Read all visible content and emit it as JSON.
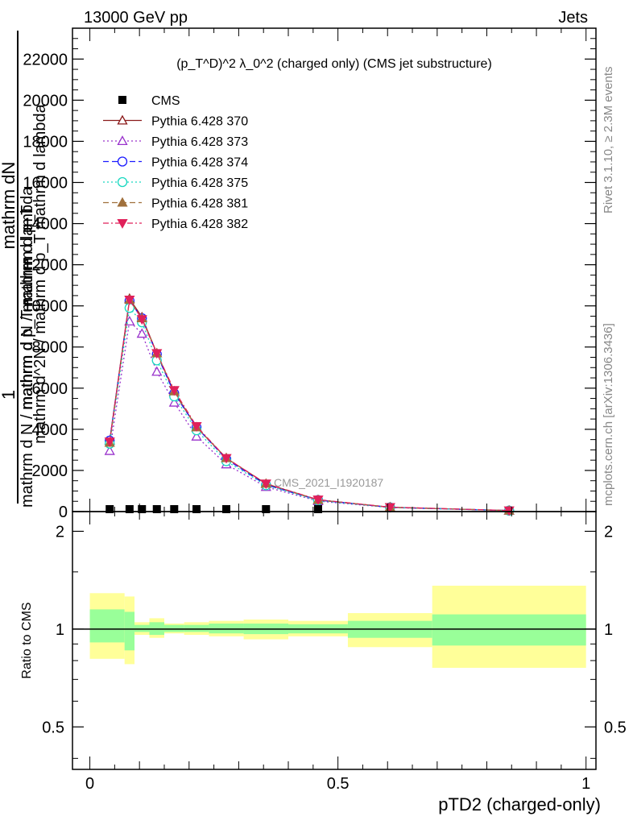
{
  "header": {
    "energy_label": "13000 GeV pp",
    "type_label": "Jets",
    "plot_title": "(p_T^D)^2 λ_0^2 (charged only) (CMS jet substructure)",
    "analysis_id": "CMS_2021_I1920187",
    "rivet_label": "Rivet 3.1.10, ≥ 2.3M events",
    "mcplots_label": "mcplots.cern.ch [arXiv:1306.3436]"
  },
  "main_ylabel": {
    "line1": "1",
    "line2_top": "mathrm dN",
    "line2_bottom": "mathrm d N / mathrm d p_T mathrm d p_T",
    "line3": "mathrm d^2N / mathrm d p_T mathrm d lambda",
    "line4": "mathrm d N / mathrm d lambda"
  },
  "ratio_ylabel": "Ratio to CMS",
  "xlabel": "pTD2 (charged-only)",
  "colors": {
    "band_inner": "#99ff99",
    "band_outer": "#ffff99",
    "cms": "#000000",
    "p370": "#8b1a1a",
    "p373": "#9932cc",
    "p374": "#1a1aff",
    "p375": "#18d8c0",
    "p381": "#a0703c",
    "p382": "#e0205a"
  },
  "chart_data": {
    "type": "line",
    "x": [
      0.04,
      0.08,
      0.105,
      0.135,
      0.17,
      0.215,
      0.275,
      0.355,
      0.46,
      0.605,
      0.845
    ],
    "xlim": [
      -0.035,
      1.02
    ],
    "ylim": [
      0,
      23500
    ],
    "ratio_ylim": [
      0.37,
      2.3
    ],
    "y_ticks": [
      0,
      2000,
      4000,
      6000,
      8000,
      10000,
      12000,
      14000,
      16000,
      18000,
      20000,
      22000
    ],
    "y_tick_labels": [
      "0",
      "2000",
      "4000",
      "6000",
      "8000",
      "10000",
      "12000",
      "14000",
      "16000",
      "18000",
      "20000",
      "22000"
    ],
    "x_ticks": [
      0,
      0.5,
      1
    ],
    "x_tick_labels": [
      "0",
      "0.5",
      "1"
    ],
    "ratio_ticks": [
      0.5,
      1,
      2
    ],
    "ratio_tick_labels": [
      "0.5",
      "1",
      "2"
    ],
    "legend_position": "top-left",
    "cms": {
      "name": "CMS",
      "values": [
        30,
        30,
        30,
        30,
        30,
        30,
        30,
        30,
        30,
        null,
        null
      ]
    },
    "series": [
      {
        "name": "Pythia 6.428 370",
        "color_key": "p370",
        "marker": "triangle-open",
        "dash": "",
        "values": [
          3450,
          10350,
          9450,
          7700,
          5800,
          4100,
          2600,
          1350,
          560,
          210,
          50
        ]
      },
      {
        "name": "Pythia 6.428 373",
        "color_key": "p373",
        "marker": "triangle-open",
        "dash": "2,3",
        "values": [
          2950,
          9250,
          8650,
          6800,
          5300,
          3650,
          2300,
          1200,
          510,
          195,
          48
        ]
      },
      {
        "name": "Pythia 6.428 374",
        "color_key": "p374",
        "marker": "circle-open",
        "dash": "7,4",
        "values": [
          3450,
          10250,
          9400,
          7650,
          5750,
          4100,
          2550,
          1300,
          560,
          205,
          50
        ]
      },
      {
        "name": "Pythia 6.428 375",
        "color_key": "p375",
        "marker": "circle-open",
        "dash": "2,3",
        "values": [
          3300,
          9900,
          9200,
          7350,
          5600,
          3950,
          2450,
          1280,
          540,
          200,
          48
        ]
      },
      {
        "name": "Pythia 6.428 381",
        "color_key": "p381",
        "marker": "triangle-filled",
        "dash": "7,4",
        "values": [
          3350,
          10300,
          9400,
          7700,
          5850,
          4100,
          2600,
          1360,
          570,
          210,
          50
        ]
      },
      {
        "name": "Pythia 6.428 382",
        "color_key": "p382",
        "marker": "triangle-down-filled",
        "dash": "7,3,2,3",
        "values": [
          3400,
          10300,
          9350,
          7700,
          5900,
          4150,
          2600,
          1360,
          580,
          215,
          52
        ]
      }
    ],
    "ratio_bands": [
      {
        "x0": 0.0,
        "x1": 0.07,
        "inner": [
          0.91,
          1.15
        ],
        "outer": [
          0.81,
          1.29
        ]
      },
      {
        "x0": 0.07,
        "x1": 0.09,
        "inner": [
          0.86,
          1.13
        ],
        "outer": [
          0.78,
          1.26
        ]
      },
      {
        "x0": 0.09,
        "x1": 0.12,
        "inner": [
          0.98,
          1.03
        ],
        "outer": [
          0.96,
          1.05
        ]
      },
      {
        "x0": 0.12,
        "x1": 0.15,
        "inner": [
          0.96,
          1.05
        ],
        "outer": [
          0.94,
          1.08
        ]
      },
      {
        "x0": 0.15,
        "x1": 0.19,
        "inner": [
          0.98,
          1.03
        ],
        "outer": [
          0.97,
          1.04
        ]
      },
      {
        "x0": 0.19,
        "x1": 0.24,
        "inner": [
          0.98,
          1.03
        ],
        "outer": [
          0.96,
          1.05
        ]
      },
      {
        "x0": 0.24,
        "x1": 0.31,
        "inner": [
          0.97,
          1.04
        ],
        "outer": [
          0.95,
          1.06
        ]
      },
      {
        "x0": 0.31,
        "x1": 0.4,
        "inner": [
          0.965,
          1.04
        ],
        "outer": [
          0.93,
          1.07
        ]
      },
      {
        "x0": 0.4,
        "x1": 0.52,
        "inner": [
          0.97,
          1.035
        ],
        "outer": [
          0.95,
          1.06
        ]
      },
      {
        "x0": 0.52,
        "x1": 0.69,
        "inner": [
          0.94,
          1.06
        ],
        "outer": [
          0.88,
          1.12
        ]
      },
      {
        "x0": 0.69,
        "x1": 1.0,
        "inner": [
          0.89,
          1.11
        ],
        "outer": [
          0.76,
          1.36
        ]
      }
    ]
  }
}
